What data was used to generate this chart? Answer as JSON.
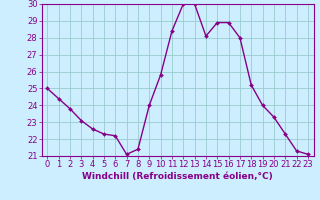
{
  "x": [
    0,
    1,
    2,
    3,
    4,
    5,
    6,
    7,
    8,
    9,
    10,
    11,
    12,
    13,
    14,
    15,
    16,
    17,
    18,
    19,
    20,
    21,
    22,
    23
  ],
  "y": [
    25.0,
    24.4,
    23.8,
    23.1,
    22.6,
    22.3,
    22.2,
    21.1,
    21.4,
    24.0,
    25.8,
    28.4,
    30.0,
    30.0,
    28.1,
    28.9,
    28.9,
    28.0,
    25.2,
    24.0,
    23.3,
    22.3,
    21.3,
    21.1
  ],
  "line_color": "#880088",
  "marker_color": "#880088",
  "bg_color": "#cceeff",
  "grid_color": "#99cccc",
  "axis_color": "#880088",
  "tick_color": "#880088",
  "xlabel": "Windchill (Refroidissement éolien,°C)",
  "xlim": [
    -0.5,
    23.5
  ],
  "ylim": [
    21,
    30
  ],
  "yticks": [
    21,
    22,
    23,
    24,
    25,
    26,
    27,
    28,
    29,
    30
  ],
  "xticks": [
    0,
    1,
    2,
    3,
    4,
    5,
    6,
    7,
    8,
    9,
    10,
    11,
    12,
    13,
    14,
    15,
    16,
    17,
    18,
    19,
    20,
    21,
    22,
    23
  ],
  "tick_fontsize": 6.0,
  "xlabel_fontsize": 6.5,
  "linewidth": 1.0,
  "markersize": 2.0
}
